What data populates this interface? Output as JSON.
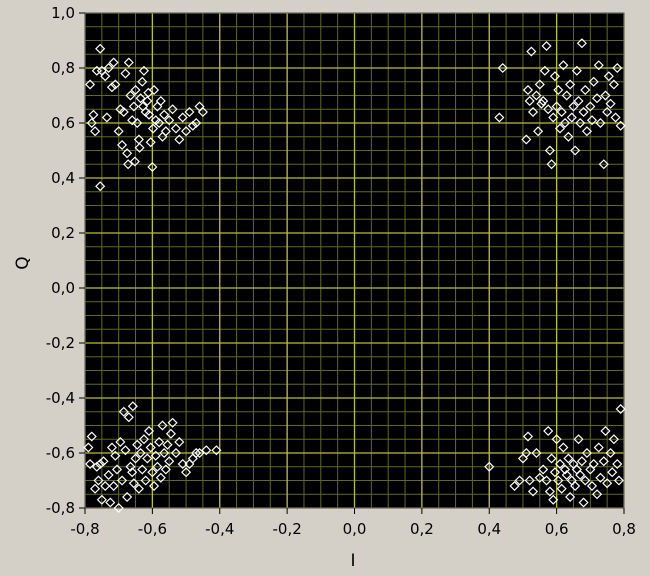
{
  "chart_data": {
    "type": "scatter",
    "xlabel": "I",
    "ylabel": "Q",
    "xlim": [
      -0.8,
      0.8
    ],
    "ylim": [
      -0.8,
      1.0
    ],
    "x_ticks": [
      {
        "value": -0.8,
        "label": "-0,8"
      },
      {
        "value": -0.6,
        "label": "-0,6"
      },
      {
        "value": -0.4,
        "label": "-0,4"
      },
      {
        "value": -0.2,
        "label": "-0,2"
      },
      {
        "value": 0.0,
        "label": "0,0"
      },
      {
        "value": 0.2,
        "label": "0,2"
      },
      {
        "value": 0.4,
        "label": "0,4"
      },
      {
        "value": 0.6,
        "label": "0,6"
      },
      {
        "value": 0.8,
        "label": "0,8"
      }
    ],
    "y_ticks": [
      {
        "value": -0.8,
        "label": "-0,8"
      },
      {
        "value": -0.6,
        "label": "-0,6"
      },
      {
        "value": -0.4,
        "label": "-0,4"
      },
      {
        "value": -0.2,
        "label": "-0,2"
      },
      {
        "value": 0.0,
        "label": "0,0"
      },
      {
        "value": 0.2,
        "label": "0,2"
      },
      {
        "value": 0.4,
        "label": "0,4"
      },
      {
        "value": 0.6,
        "label": "0,6"
      },
      {
        "value": 0.8,
        "label": "0,8"
      },
      {
        "value": 1.0,
        "label": "1,0"
      }
    ],
    "grid": true,
    "minor_grid_step": 0.05,
    "colors": {
      "plot_background": "#000000",
      "major_grid": "#b9bd3a",
      "minor_grid": "#5f6a22",
      "marker": "#ffffff",
      "panel": "#d4d0c8",
      "text": "#000000"
    },
    "marker": "diamond",
    "points": [
      [
        -0.785,
        0.74
      ],
      [
        -0.78,
        0.6
      ],
      [
        -0.775,
        0.63
      ],
      [
        -0.77,
        0.57
      ],
      [
        -0.765,
        0.79
      ],
      [
        -0.755,
        0.87
      ],
      [
        -0.75,
        0.79
      ],
      [
        -0.755,
        0.37
      ],
      [
        -0.74,
        0.77
      ],
      [
        -0.735,
        0.62
      ],
      [
        -0.73,
        0.8
      ],
      [
        -0.72,
        0.73
      ],
      [
        -0.715,
        0.82
      ],
      [
        -0.71,
        0.74
      ],
      [
        -0.7,
        0.57
      ],
      [
        -0.695,
        0.65
      ],
      [
        -0.69,
        0.52
      ],
      [
        -0.685,
        0.64
      ],
      [
        -0.68,
        0.78
      ],
      [
        -0.675,
        0.49
      ],
      [
        -0.672,
        0.45
      ],
      [
        -0.67,
        0.82
      ],
      [
        -0.665,
        0.7
      ],
      [
        -0.66,
        0.61
      ],
      [
        -0.655,
        0.66
      ],
      [
        -0.652,
        0.46
      ],
      [
        -0.65,
        0.72
      ],
      [
        -0.645,
        0.6
      ],
      [
        -0.64,
        0.54
      ],
      [
        -0.638,
        0.51
      ],
      [
        -0.635,
        0.69
      ],
      [
        -0.63,
        0.75
      ],
      [
        -0.628,
        0.66
      ],
      [
        -0.625,
        0.79
      ],
      [
        -0.62,
        0.64
      ],
      [
        -0.615,
        0.68
      ],
      [
        -0.612,
        0.71
      ],
      [
        -0.61,
        0.63
      ],
      [
        -0.605,
        0.53
      ],
      [
        -0.6,
        0.44
      ],
      [
        -0.598,
        0.58
      ],
      [
        -0.595,
        0.72
      ],
      [
        -0.59,
        0.61
      ],
      [
        -0.585,
        0.66
      ],
      [
        -0.58,
        0.6
      ],
      [
        -0.575,
        0.68
      ],
      [
        -0.57,
        0.55
      ],
      [
        -0.565,
        0.63
      ],
      [
        -0.56,
        0.57
      ],
      [
        -0.55,
        0.61
      ],
      [
        -0.54,
        0.65
      ],
      [
        -0.53,
        0.58
      ],
      [
        -0.52,
        0.54
      ],
      [
        -0.51,
        0.62
      ],
      [
        -0.5,
        0.57
      ],
      [
        -0.49,
        0.64
      ],
      [
        -0.48,
        0.59
      ],
      [
        -0.47,
        0.6
      ],
      [
        -0.46,
        0.66
      ],
      [
        -0.45,
        0.64
      ],
      [
        0.44,
        0.8
      ],
      [
        0.43,
        0.62
      ],
      [
        0.51,
        0.54
      ],
      [
        0.515,
        0.72
      ],
      [
        0.52,
        0.68
      ],
      [
        0.525,
        0.86
      ],
      [
        0.53,
        0.64
      ],
      [
        0.54,
        0.7
      ],
      [
        0.545,
        0.57
      ],
      [
        0.55,
        0.74
      ],
      [
        0.555,
        0.67
      ],
      [
        0.56,
        0.68
      ],
      [
        0.565,
        0.79
      ],
      [
        0.57,
        0.88
      ],
      [
        0.575,
        0.65
      ],
      [
        0.58,
        0.5
      ],
      [
        0.585,
        0.45
      ],
      [
        0.59,
        0.62
      ],
      [
        0.595,
        0.77
      ],
      [
        0.6,
        0.66
      ],
      [
        0.605,
        0.72
      ],
      [
        0.61,
        0.58
      ],
      [
        0.615,
        0.64
      ],
      [
        0.62,
        0.81
      ],
      [
        0.625,
        0.6
      ],
      [
        0.63,
        0.7
      ],
      [
        0.635,
        0.55
      ],
      [
        0.64,
        0.74
      ],
      [
        0.645,
        0.62
      ],
      [
        0.65,
        0.66
      ],
      [
        0.655,
        0.5
      ],
      [
        0.66,
        0.79
      ],
      [
        0.665,
        0.68
      ],
      [
        0.67,
        0.6
      ],
      [
        0.675,
        0.89
      ],
      [
        0.68,
        0.64
      ],
      [
        0.685,
        0.72
      ],
      [
        0.69,
        0.57
      ],
      [
        0.7,
        0.66
      ],
      [
        0.705,
        0.61
      ],
      [
        0.71,
        0.75
      ],
      [
        0.72,
        0.69
      ],
      [
        0.725,
        0.81
      ],
      [
        0.73,
        0.6
      ],
      [
        0.74,
        0.45
      ],
      [
        0.745,
        0.7
      ],
      [
        0.75,
        0.64
      ],
      [
        0.755,
        0.77
      ],
      [
        0.76,
        0.67
      ],
      [
        0.77,
        0.74
      ],
      [
        0.775,
        0.62
      ],
      [
        0.78,
        0.8
      ],
      [
        0.79,
        0.59
      ],
      [
        -0.79,
        -0.58
      ],
      [
        -0.785,
        -0.64
      ],
      [
        -0.78,
        -0.54
      ],
      [
        -0.77,
        -0.73
      ],
      [
        -0.765,
        -0.65
      ],
      [
        -0.76,
        -0.7
      ],
      [
        -0.755,
        -0.64
      ],
      [
        -0.75,
        -0.77
      ],
      [
        -0.745,
        -0.63
      ],
      [
        -0.74,
        -0.72
      ],
      [
        -0.73,
        -0.68
      ],
      [
        -0.725,
        -0.78
      ],
      [
        -0.72,
        -0.58
      ],
      [
        -0.715,
        -0.72
      ],
      [
        -0.71,
        -0.61
      ],
      [
        -0.705,
        -0.66
      ],
      [
        -0.7,
        -0.8
      ],
      [
        -0.695,
        -0.56
      ],
      [
        -0.69,
        -0.7
      ],
      [
        -0.685,
        -0.45
      ],
      [
        -0.68,
        -0.59
      ],
      [
        -0.675,
        -0.76
      ],
      [
        -0.67,
        -0.47
      ],
      [
        -0.665,
        -0.65
      ],
      [
        -0.66,
        -0.67
      ],
      [
        -0.658,
        -0.43
      ],
      [
        -0.655,
        -0.71
      ],
      [
        -0.65,
        -0.62
      ],
      [
        -0.645,
        -0.57
      ],
      [
        -0.64,
        -0.73
      ],
      [
        -0.635,
        -0.6
      ],
      [
        -0.63,
        -0.66
      ],
      [
        -0.625,
        -0.55
      ],
      [
        -0.62,
        -0.7
      ],
      [
        -0.615,
        -0.62
      ],
      [
        -0.61,
        -0.52
      ],
      [
        -0.605,
        -0.58
      ],
      [
        -0.6,
        -0.67
      ],
      [
        -0.595,
        -0.72
      ],
      [
        -0.59,
        -0.61
      ],
      [
        -0.585,
        -0.65
      ],
      [
        -0.58,
        -0.56
      ],
      [
        -0.575,
        -0.69
      ],
      [
        -0.57,
        -0.5
      ],
      [
        -0.565,
        -0.6
      ],
      [
        -0.56,
        -0.66
      ],
      [
        -0.555,
        -0.57
      ],
      [
        -0.55,
        -0.63
      ],
      [
        -0.545,
        -0.53
      ],
      [
        -0.54,
        -0.49
      ],
      [
        -0.53,
        -0.6
      ],
      [
        -0.52,
        -0.56
      ],
      [
        -0.51,
        -0.64
      ],
      [
        -0.5,
        -0.67
      ],
      [
        -0.49,
        -0.64
      ],
      [
        -0.48,
        -0.62
      ],
      [
        -0.47,
        -0.6
      ],
      [
        -0.46,
        -0.6
      ],
      [
        -0.44,
        -0.59
      ],
      [
        -0.41,
        -0.59
      ],
      [
        0.4,
        -0.65
      ],
      [
        0.475,
        -0.72
      ],
      [
        0.49,
        -0.7
      ],
      [
        0.5,
        -0.62
      ],
      [
        0.51,
        -0.6
      ],
      [
        0.515,
        -0.54
      ],
      [
        0.52,
        -0.7
      ],
      [
        0.53,
        -0.74
      ],
      [
        0.54,
        -0.6
      ],
      [
        0.55,
        -0.69
      ],
      [
        0.56,
        -0.66
      ],
      [
        0.57,
        -0.7
      ],
      [
        0.575,
        -0.52
      ],
      [
        0.58,
        -0.74
      ],
      [
        0.585,
        -0.62
      ],
      [
        0.59,
        -0.77
      ],
      [
        0.595,
        -0.67
      ],
      [
        0.6,
        -0.55
      ],
      [
        0.605,
        -0.7
      ],
      [
        0.61,
        -0.64
      ],
      [
        0.615,
        -0.73
      ],
      [
        0.62,
        -0.58
      ],
      [
        0.625,
        -0.66
      ],
      [
        0.63,
        -0.68
      ],
      [
        0.635,
        -0.62
      ],
      [
        0.64,
        -0.76
      ],
      [
        0.645,
        -0.7
      ],
      [
        0.65,
        -0.64
      ],
      [
        0.655,
        -0.72
      ],
      [
        0.66,
        -0.66
      ],
      [
        0.665,
        -0.55
      ],
      [
        0.67,
        -0.68
      ],
      [
        0.675,
        -0.63
      ],
      [
        0.68,
        -0.78
      ],
      [
        0.685,
        -0.7
      ],
      [
        0.69,
        -0.6
      ],
      [
        0.7,
        -0.66
      ],
      [
        0.705,
        -0.72
      ],
      [
        0.71,
        -0.64
      ],
      [
        0.72,
        -0.75
      ],
      [
        0.725,
        -0.58
      ],
      [
        0.73,
        -0.69
      ],
      [
        0.74,
        -0.63
      ],
      [
        0.745,
        -0.52
      ],
      [
        0.75,
        -0.71
      ],
      [
        0.76,
        -0.6
      ],
      [
        0.765,
        -0.67
      ],
      [
        0.77,
        -0.55
      ],
      [
        0.78,
        -0.64
      ],
      [
        0.785,
        -0.7
      ],
      [
        0.79,
        -0.44
      ]
    ]
  }
}
